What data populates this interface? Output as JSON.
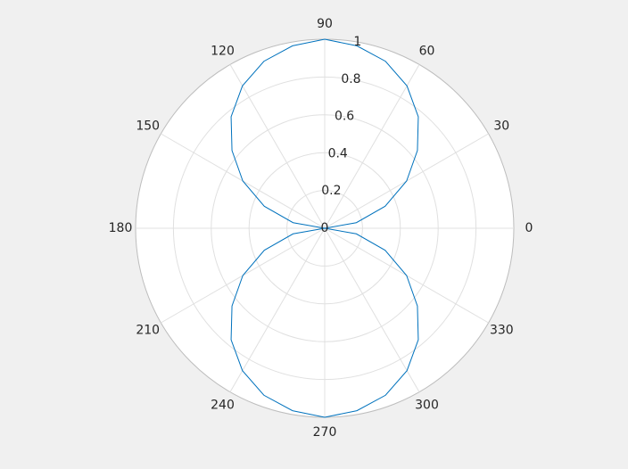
{
  "chart_data": {
    "type": "polar",
    "x": [
      0,
      10,
      20,
      30,
      40,
      50,
      60,
      70,
      80,
      90,
      100,
      110,
      120,
      130,
      140,
      150,
      160,
      170,
      180,
      190,
      200,
      210,
      220,
      230,
      240,
      250,
      260,
      270,
      280,
      290,
      300,
      310,
      320,
      330,
      340,
      350,
      360
    ],
    "values": [
      0,
      0.17,
      0.34,
      0.5,
      0.64,
      0.77,
      0.87,
      0.94,
      0.98,
      1,
      0.98,
      0.94,
      0.87,
      0.77,
      0.64,
      0.5,
      0.34,
      0.17,
      0,
      0.17,
      0.34,
      0.5,
      0.64,
      0.77,
      0.87,
      0.94,
      0.98,
      1,
      0.98,
      0.94,
      0.87,
      0.77,
      0.64,
      0.5,
      0.34,
      0.17,
      0
    ],
    "color": "#0072bd",
    "xticks": [
      0,
      30,
      60,
      90,
      120,
      150,
      180,
      210,
      240,
      270,
      300,
      330
    ],
    "ylim": [
      0,
      1
    ],
    "yticks": [
      0,
      0.2,
      0.4,
      0.6,
      0.8,
      1
    ],
    "grid": true
  }
}
